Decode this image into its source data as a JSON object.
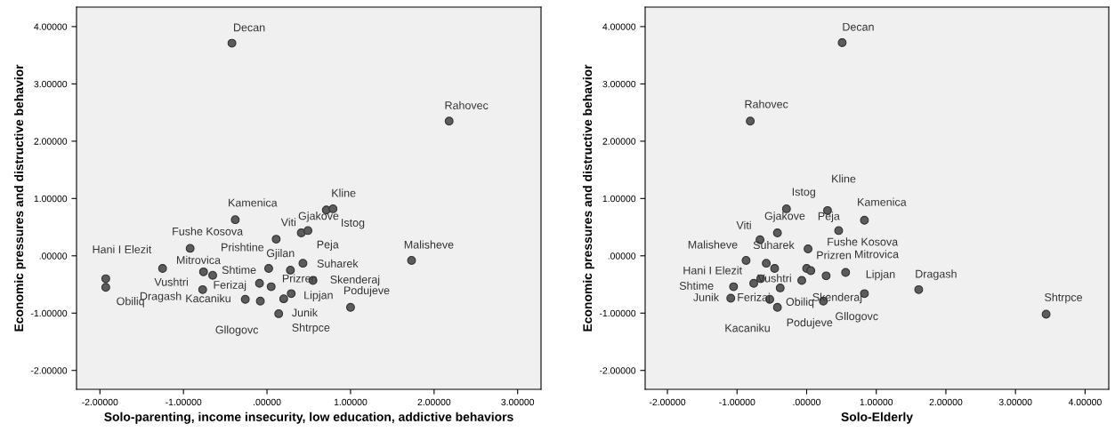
{
  "chart_data": [
    {
      "type": "scatter",
      "xlabel": "Solo-parenting, income insecurity, low education, addictive behaviors",
      "ylabel": "Economic pressures and distructive behavior",
      "xlim": [
        -2.28,
        3.28
      ],
      "ylim": [
        -2.33,
        4.34
      ],
      "xticks": [
        {
          "value": -2,
          "label": "-2.00000"
        },
        {
          "value": -1,
          "label": "-1.00000"
        },
        {
          "value": 0,
          "label": ".00000"
        },
        {
          "value": 1,
          "label": "1.00000"
        },
        {
          "value": 2,
          "label": "2.00000"
        },
        {
          "value": 3,
          "label": "3.00000"
        }
      ],
      "yticks": [
        {
          "value": -2,
          "label": "-2.00000"
        },
        {
          "value": -1,
          "label": "-1.00000"
        },
        {
          "value": 0,
          "label": ".00000"
        },
        {
          "value": 1,
          "label": "1.00000"
        },
        {
          "value": 2,
          "label": "2.00000"
        },
        {
          "value": 3,
          "label": "3.00000"
        },
        {
          "value": 4,
          "label": "4.00000"
        }
      ],
      "grid": false,
      "legend": false,
      "marker": "circle",
      "series": [
        {
          "color": "#5c5c5c",
          "x": [
            -0.42,
            2.18,
            0.71,
            0.79,
            -0.38,
            0.41,
            0.49,
            0.11,
            -0.92,
            1.73,
            -1.93,
            -1.93,
            -1.25,
            -0.76,
            -0.65,
            -0.77,
            0.02,
            0.28,
            0.43,
            -0.09,
            0.05,
            0.55,
            -0.26,
            -0.08,
            0.2,
            0.29,
            0.14,
            1.0
          ],
          "values": [
            3.71,
            2.35,
            0.8,
            0.82,
            0.63,
            0.4,
            0.44,
            0.29,
            0.13,
            -0.08,
            -0.4,
            -0.55,
            -0.22,
            -0.28,
            -0.34,
            -0.59,
            -0.22,
            -0.25,
            -0.13,
            -0.48,
            -0.54,
            -0.43,
            -0.76,
            -0.79,
            -0.75,
            -0.66,
            -1.01,
            -0.9
          ],
          "value_labels": [
            "Decan",
            "Rahovec",
            "Kline",
            "Istog",
            "Kamenica",
            "Gjakove",
            "Peja",
            "Viti",
            "Fushe Kosova",
            "Malisheve",
            "Hani I Elezit",
            "Obiliq",
            "Mitrovica",
            "Vushtri",
            "Prishtine",
            "Dragash",
            "Shtime",
            "Gjilan",
            "Suharek",
            "Ferizaj",
            "Prizren",
            "Skenderaj",
            "Kacaniku",
            "Gllogovc",
            "Junik",
            "Lipjan",
            "Shtrpce",
            "Podujeve"
          ]
        }
      ]
    },
    {
      "type": "scatter",
      "xlabel": "Solo-Elderly",
      "ylabel": "Economic pressures and distructive behavior",
      "xlim": [
        -2.32,
        4.34
      ],
      "ylim": [
        -2.33,
        4.34
      ],
      "xticks": [
        {
          "value": -2,
          "label": "-2.00000"
        },
        {
          "value": -1,
          "label": "-1.00000"
        },
        {
          "value": 0,
          "label": ".00000"
        },
        {
          "value": 1,
          "label": "1.00000"
        },
        {
          "value": 2,
          "label": "2.00000"
        },
        {
          "value": 3,
          "label": "3.00000"
        },
        {
          "value": 4,
          "label": "4.00000"
        }
      ],
      "yticks": [
        {
          "value": -2,
          "label": "-2.00000"
        },
        {
          "value": -1,
          "label": "-1.00000"
        },
        {
          "value": 0,
          "label": ".00000"
        },
        {
          "value": 1,
          "label": "1.00000"
        },
        {
          "value": 2,
          "label": "2.00000"
        },
        {
          "value": 3,
          "label": "3.00000"
        },
        {
          "value": 4,
          "label": "4.00000"
        }
      ],
      "grid": false,
      "legend": false,
      "marker": "circle",
      "series": [
        {
          "color": "#5c5c5c",
          "x": [
            0.51,
            -0.81,
            -0.29,
            0.3,
            0.83,
            -0.42,
            0.46,
            -0.67,
            0.02,
            -0.87,
            -0.58,
            0.0,
            0.56,
            -0.66,
            -0.07,
            -1.05,
            -1.09,
            -0.76,
            -0.38,
            0.28,
            0.24,
            -0.53,
            -0.42,
            0.83,
            1.61,
            3.44,
            -0.46,
            0.06
          ],
          "values": [
            3.72,
            2.35,
            0.82,
            0.79,
            0.62,
            0.4,
            0.44,
            0.28,
            0.12,
            -0.08,
            -0.13,
            -0.22,
            -0.29,
            -0.4,
            -0.43,
            -0.54,
            -0.74,
            -0.48,
            -0.56,
            -0.35,
            -0.79,
            -0.76,
            -0.9,
            -0.66,
            -0.59,
            -1.02,
            -0.22,
            -0.26
          ],
          "value_labels": [
            "Decan",
            "Rahovec",
            "Istog",
            "Kline",
            "Kamenica",
            "Gjakove",
            "Peja",
            "Viti",
            "Fushe Kosova",
            "Malisheve",
            "Suharek",
            "Prizren",
            "Mitrovica",
            "Hani I Elezit",
            "Vushtri",
            "Shtime",
            "Junik",
            "Ferizaj",
            "Obiliq",
            "Skenderaj",
            "Gllogovc",
            "Kacaniku",
            "Podujeve",
            "Lipjan",
            "Dragash",
            "Shtrpce",
            null,
            null
          ]
        }
      ]
    }
  ]
}
